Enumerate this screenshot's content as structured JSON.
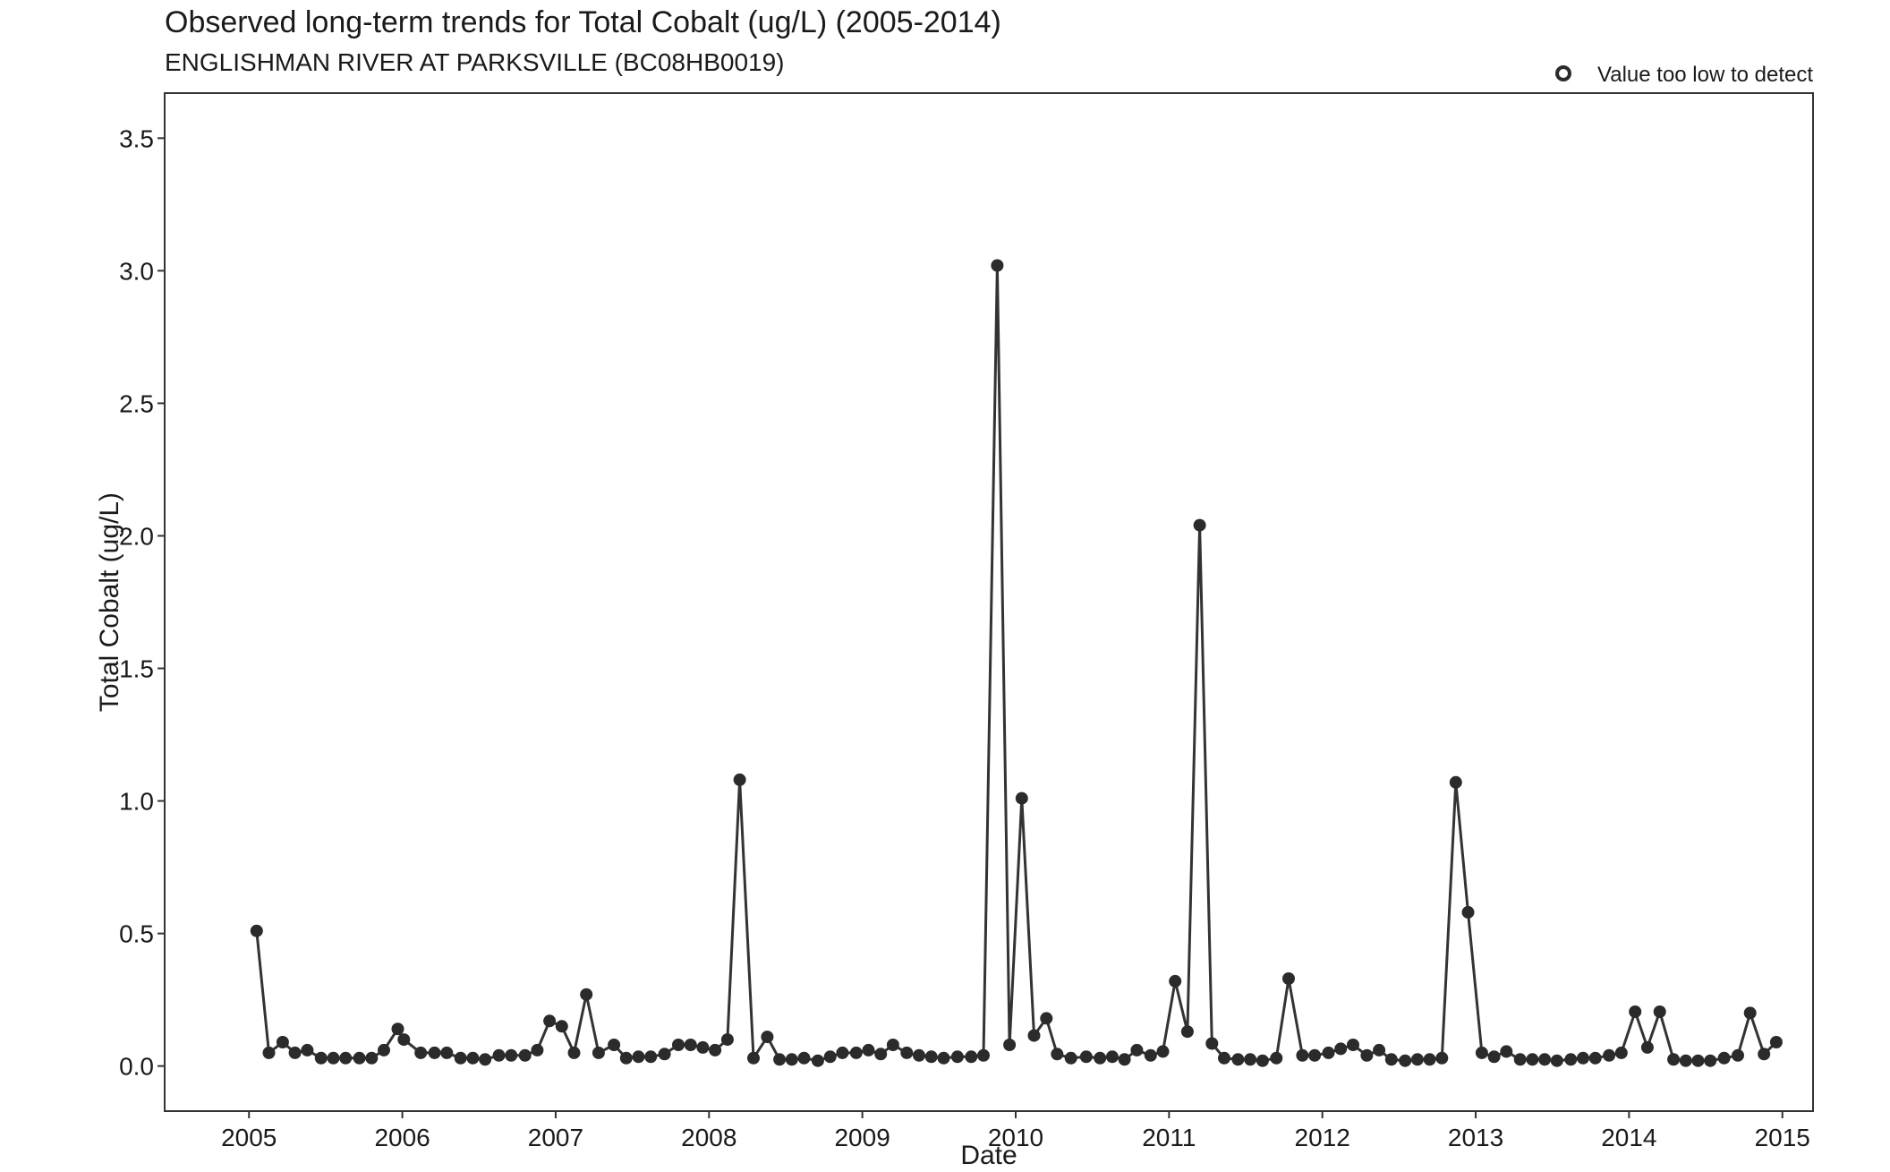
{
  "chart_data": {
    "type": "line",
    "title": "Observed long-term trends for Total Cobalt (ug/L) (2005-2014)",
    "subtitle": "ENGLISHMAN RIVER AT PARKSVILLE (BC08HB0019)",
    "xlabel": "Date",
    "ylabel": "Total Cobalt (ug/L)",
    "xlim": [
      2004.45,
      2015.2
    ],
    "ylim": [
      -0.17,
      3.67
    ],
    "x_ticks": [
      2005,
      2006,
      2007,
      2008,
      2009,
      2010,
      2011,
      2012,
      2013,
      2014,
      2015
    ],
    "y_ticks": [
      0.0,
      0.5,
      1.0,
      1.5,
      2.0,
      2.5,
      3.0,
      3.5
    ],
    "y_tick_labels": [
      "0.0",
      "0.5",
      "1.0",
      "1.5",
      "2.0",
      "2.5",
      "3.0",
      "3.5"
    ],
    "legend": {
      "label": "Value too low to detect",
      "marker": "open-circle",
      "position": "top-right"
    },
    "grid": false,
    "colors": {
      "line": "#333333",
      "point": "#2b2b2b",
      "axis": "#333333"
    },
    "series": [
      {
        "x": [
          2005.05,
          2005.13,
          2005.22,
          2005.3,
          2005.38,
          2005.47,
          2005.55,
          2005.63,
          2005.72,
          2005.8,
          2005.88,
          2005.97,
          2006.01,
          2006.12,
          2006.21,
          2006.29,
          2006.38,
          2006.46,
          2006.54,
          2006.63,
          2006.71,
          2006.8,
          2006.88,
          2006.96,
          2007.04,
          2007.12,
          2007.2,
          2007.28,
          2007.38,
          2007.46,
          2007.54,
          2007.62,
          2007.71,
          2007.8,
          2007.88,
          2007.96,
          2008.04,
          2008.12,
          2008.2,
          2008.29,
          2008.38,
          2008.46,
          2008.54,
          2008.62,
          2008.71,
          2008.79,
          2008.87,
          2008.96,
          2009.04,
          2009.12,
          2009.2,
          2009.29,
          2009.37,
          2009.45,
          2009.53,
          2009.62,
          2009.71,
          2009.79,
          2009.88,
          2009.96,
          2010.04,
          2010.12,
          2010.2,
          2010.27,
          2010.36,
          2010.46,
          2010.55,
          2010.63,
          2010.71,
          2010.79,
          2010.88,
          2010.96,
          2011.04,
          2011.12,
          2011.2,
          2011.28,
          2011.36,
          2011.45,
          2011.53,
          2011.61,
          2011.7,
          2011.78,
          2011.87,
          2011.95,
          2012.04,
          2012.12,
          2012.2,
          2012.29,
          2012.37,
          2012.45,
          2012.54,
          2012.62,
          2012.7,
          2012.78,
          2012.87,
          2012.95,
          2013.04,
          2013.12,
          2013.2,
          2013.29,
          2013.37,
          2013.45,
          2013.53,
          2013.62,
          2013.7,
          2013.78,
          2013.87,
          2013.95,
          2014.04,
          2014.12,
          2014.2,
          2014.29,
          2014.37,
          2014.45,
          2014.53,
          2014.62,
          2014.71,
          2014.79,
          2014.88,
          2014.96
        ],
        "y": [
          0.51,
          0.05,
          0.09,
          0.05,
          0.06,
          0.03,
          0.03,
          0.03,
          0.03,
          0.03,
          0.06,
          0.14,
          0.1,
          0.05,
          0.05,
          0.05,
          0.03,
          0.03,
          0.025,
          0.04,
          0.04,
          0.04,
          0.06,
          0.17,
          0.15,
          0.05,
          0.27,
          0.05,
          0.08,
          0.03,
          0.035,
          0.035,
          0.045,
          0.08,
          0.08,
          0.07,
          0.06,
          0.1,
          1.08,
          0.03,
          0.11,
          0.025,
          0.025,
          0.03,
          0.02,
          0.035,
          0.05,
          0.05,
          0.06,
          0.045,
          0.08,
          0.05,
          0.04,
          0.035,
          0.03,
          0.035,
          0.035,
          0.04,
          3.02,
          0.08,
          1.01,
          0.115,
          0.18,
          0.045,
          0.03,
          0.035,
          0.03,
          0.035,
          0.025,
          0.06,
          0.04,
          0.055,
          0.32,
          0.13,
          2.04,
          0.085,
          0.03,
          0.025,
          0.025,
          0.02,
          0.03,
          0.33,
          0.04,
          0.04,
          0.05,
          0.065,
          0.08,
          0.04,
          0.06,
          0.025,
          0.02,
          0.025,
          0.025,
          0.03,
          1.07,
          0.58,
          0.05,
          0.035,
          0.055,
          0.025,
          0.025,
          0.025,
          0.02,
          0.025,
          0.03,
          0.03,
          0.04,
          0.05,
          0.205,
          0.07,
          0.205,
          0.025,
          0.02,
          0.02,
          0.02,
          0.03,
          0.04,
          0.2,
          0.045,
          0.09
        ]
      }
    ]
  }
}
